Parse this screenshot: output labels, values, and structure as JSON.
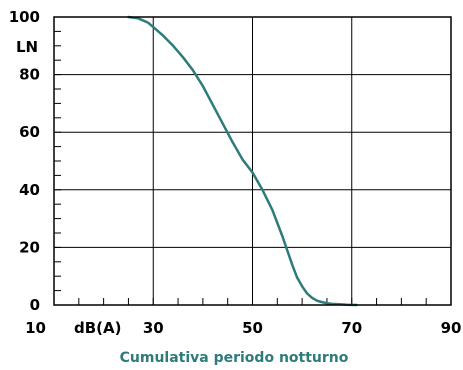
{
  "chart_data": {
    "type": "line",
    "title": "Cumulativa periodo notturno",
    "xlabel": "dB(A)",
    "ylabel": "LN",
    "xlim": [
      10,
      90
    ],
    "ylim": [
      0,
      100
    ],
    "x_ticks": [
      10,
      30,
      50,
      70,
      90
    ],
    "y_ticks": [
      0,
      20,
      40,
      60,
      80,
      100
    ],
    "x_minor_step": 5,
    "y_minor_step": 5,
    "grid": true,
    "colors": {
      "line": "#2e7b7b",
      "title": "#2e7b7b",
      "axes": "#000000",
      "grid": "#000000"
    },
    "series": [
      {
        "x": [
          25,
          27,
          29,
          30,
          32,
          34,
          36,
          38,
          40,
          42,
          44,
          46,
          48,
          50,
          52,
          54,
          56,
          57,
          58,
          59,
          60,
          61,
          62,
          63,
          64,
          65,
          66,
          67,
          68,
          69,
          70,
          71
        ],
        "y": [
          100,
          99.5,
          98,
          96.5,
          93.5,
          90,
          86,
          81.5,
          76,
          69.5,
          63,
          56.5,
          50.5,
          46,
          40,
          33,
          24,
          19,
          14,
          9.5,
          6.5,
          4,
          2.5,
          1.5,
          1,
          0.6,
          0.4,
          0.3,
          0.2,
          0.1,
          0.05,
          0
        ]
      }
    ]
  }
}
